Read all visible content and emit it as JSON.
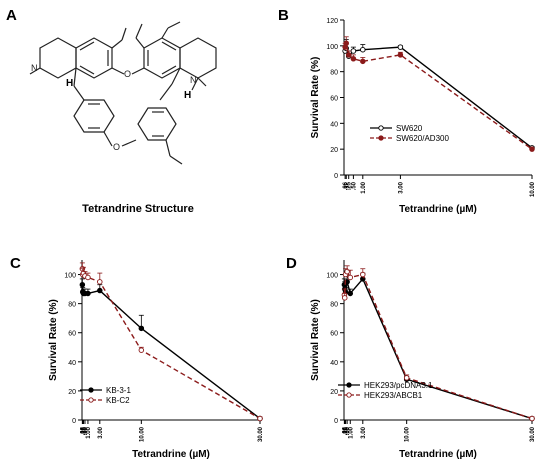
{
  "panel_labels": [
    "A",
    "B",
    "C",
    "D"
  ],
  "structure": {
    "caption": "Tetrandrine Structure",
    "h_labels": [
      "H",
      "H"
    ]
  },
  "chart_data": [
    {
      "panel": "B",
      "type": "line",
      "xlabel": "Tetrandrine (µM)",
      "ylabel": "Survival Rate (%)",
      "xlim": [
        0,
        10
      ],
      "ylim": [
        0,
        120
      ],
      "x_tick_labels": [
        ".06",
        ".12",
        ".25",
        ".50",
        "1.00",
        "3.00",
        "10.00"
      ],
      "y_tick_labels": [
        "0",
        "20",
        "40",
        "60",
        "80",
        "100",
        "120"
      ],
      "legend_position": "middle-left",
      "series": [
        {
          "name": "SW620",
          "color": "#000000",
          "line": "solid",
          "marker": "open-circle",
          "x": [
            0.06,
            0.12,
            0.25,
            0.5,
            1.0,
            3.0,
            10.0
          ],
          "y": [
            96,
            98,
            92,
            96,
            97,
            99,
            21
          ],
          "err": [
            4,
            7,
            4,
            3,
            4,
            1,
            1
          ]
        },
        {
          "name": "SW620/AD300",
          "color": "#8b1a1a",
          "line": "dashed",
          "marker": "filled-circle",
          "x": [
            0.06,
            0.12,
            0.25,
            0.5,
            1.0,
            3.0,
            10.0
          ],
          "y": [
            99,
            102,
            93,
            90,
            88,
            93,
            20
          ],
          "err": [
            3,
            5,
            3,
            3,
            3,
            2,
            1
          ]
        }
      ]
    },
    {
      "panel": "C",
      "type": "line",
      "xlabel": "Tetrandrine (µM)",
      "ylabel": "Survival Rate (%)",
      "xlim": [
        0,
        30
      ],
      "ylim": [
        0,
        110
      ],
      "x_tick_labels": [
        ".06",
        ".12",
        ".25",
        ".50",
        "1.00",
        "3.00",
        "10.00",
        "30.00"
      ],
      "y_tick_labels": [
        "0",
        "20",
        "40",
        "60",
        "80",
        "100"
      ],
      "legend_position": "bottom-left",
      "series": [
        {
          "name": "KB-3-1",
          "color": "#000000",
          "line": "solid",
          "marker": "filled-circle",
          "x": [
            0.06,
            0.12,
            0.25,
            0.5,
            1.0,
            3.0,
            10.0,
            30.0
          ],
          "y": [
            93,
            88,
            87,
            87,
            87,
            89,
            63,
            1
          ],
          "err": [
            4,
            3,
            3,
            3,
            3,
            4,
            9,
            1
          ]
        },
        {
          "name": "KB-C2",
          "color": "#8b1a1a",
          "line": "dashed",
          "marker": "open-circle",
          "x": [
            0.06,
            0.12,
            0.25,
            0.5,
            1.0,
            3.0,
            10.0,
            30.0
          ],
          "y": [
            104,
            100,
            101,
            99,
            98,
            95,
            48,
            1
          ],
          "err": [
            4,
            4,
            4,
            3,
            3,
            6,
            2,
            1
          ]
        }
      ]
    },
    {
      "panel": "D",
      "type": "line",
      "xlabel": "Tetrandrine (µM)",
      "ylabel": "Survival Rate (%)",
      "xlim": [
        0,
        30
      ],
      "ylim": [
        0,
        110
      ],
      "x_tick_labels": [
        ".06",
        ".12",
        ".25",
        ".50",
        "1.00",
        "3.00",
        "10.00",
        "30.00"
      ],
      "y_tick_labels": [
        "0",
        "20",
        "40",
        "60",
        "80",
        "100"
      ],
      "legend_position": "bottom-left",
      "series": [
        {
          "name": "HEK293/pcDNA3.1",
          "color": "#000000",
          "line": "solid",
          "marker": "filled-circle",
          "x": [
            0.06,
            0.12,
            0.25,
            0.5,
            1.0,
            3.0,
            10.0,
            30.0
          ],
          "y": [
            93,
            90,
            88,
            95,
            87,
            97,
            28,
            1
          ],
          "err": [
            4,
            5,
            3,
            4,
            3,
            4,
            2,
            1
          ]
        },
        {
          "name": "HEK293/ABCB1",
          "color": "#8b1a1a",
          "line": "dashed",
          "marker": "open-circle",
          "x": [
            0.06,
            0.12,
            0.25,
            0.5,
            1.0,
            3.0,
            10.0,
            30.0
          ],
          "y": [
            86,
            84,
            100,
            102,
            98,
            100,
            29,
            1
          ],
          "err": [
            4,
            3,
            4,
            4,
            5,
            4,
            2,
            1
          ]
        }
      ]
    }
  ]
}
